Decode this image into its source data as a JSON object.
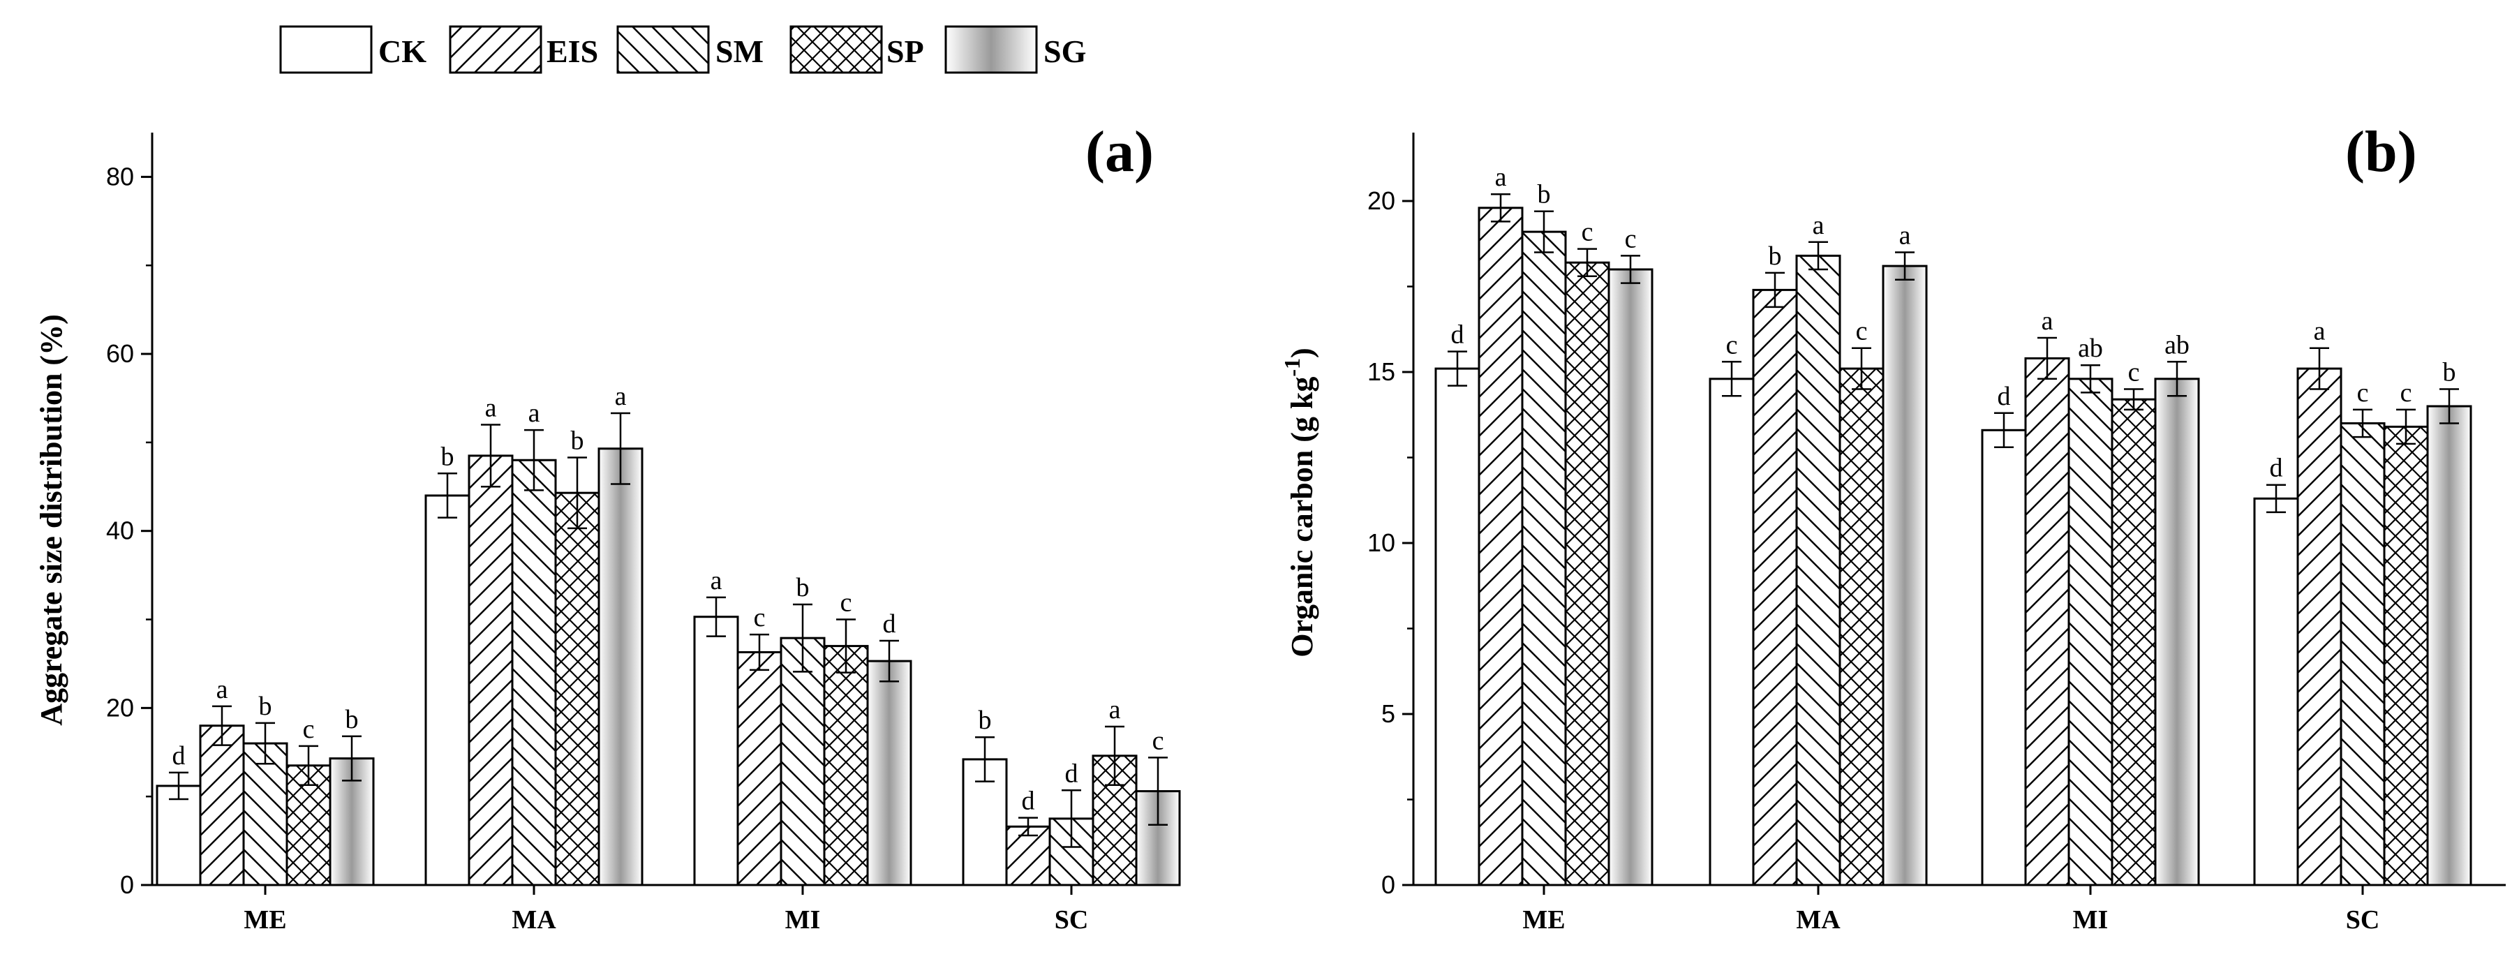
{
  "legend": {
    "items": [
      {
        "key": "CK",
        "pattern": "plain"
      },
      {
        "key": "EIS",
        "pattern": "diag-up"
      },
      {
        "key": "SM",
        "pattern": "diag-down"
      },
      {
        "key": "SP",
        "pattern": "cross"
      },
      {
        "key": "SG",
        "pattern": "gradient"
      }
    ]
  },
  "chart_data": [
    {
      "type": "bar",
      "panel_label": "(a)",
      "title": "",
      "xlabel": "",
      "ylabel": "Aggregate size distribution (%)",
      "ylim": [
        0,
        85
      ],
      "yticks": [
        0,
        20,
        40,
        60,
        80
      ],
      "categories": [
        "ME",
        "MA",
        "MI",
        "SC"
      ],
      "series": [
        {
          "name": "CK",
          "values": [
            11.2,
            44.0,
            30.3,
            14.2
          ],
          "errors": [
            1.5,
            2.5,
            2.2,
            2.5
          ],
          "letters": [
            "d",
            "b",
            "a",
            "b"
          ]
        },
        {
          "name": "EIS",
          "values": [
            18.0,
            48.5,
            26.3,
            6.6
          ],
          "errors": [
            2.2,
            3.5,
            2.0,
            1.0
          ],
          "letters": [
            "a",
            "a",
            "c",
            "d"
          ]
        },
        {
          "name": "SM",
          "values": [
            16.0,
            48.0,
            27.9,
            7.5
          ],
          "errors": [
            2.3,
            3.4,
            3.8,
            3.2
          ],
          "letters": [
            "b",
            "a",
            "b",
            "d"
          ]
        },
        {
          "name": "SP",
          "values": [
            13.5,
            44.3,
            27.0,
            14.6
          ],
          "errors": [
            2.2,
            4.0,
            3.0,
            3.3
          ],
          "letters": [
            "c",
            "b",
            "c",
            "a"
          ]
        },
        {
          "name": "SG",
          "values": [
            14.3,
            49.3,
            25.3,
            10.6
          ],
          "errors": [
            2.5,
            4.0,
            2.3,
            3.8
          ],
          "letters": [
            "b",
            "a",
            "d",
            "c"
          ]
        }
      ]
    },
    {
      "type": "bar",
      "panel_label": "(b)",
      "title": "",
      "xlabel": "",
      "ylabel": "Organic carbon (g kg",
      "ylabel_sup": "-1",
      "ylabel_end": ")",
      "ylim": [
        0,
        22
      ],
      "yticks": [
        0,
        5,
        10,
        15,
        20
      ],
      "categories": [
        "ME",
        "MA",
        "MI",
        "SC"
      ],
      "series": [
        {
          "name": "CK",
          "values": [
            15.1,
            14.8,
            13.3,
            11.3
          ],
          "errors": [
            0.5,
            0.5,
            0.5,
            0.4
          ],
          "letters": [
            "d",
            "c",
            "d",
            "d"
          ]
        },
        {
          "name": "EIS",
          "values": [
            19.8,
            17.4,
            15.4,
            15.1
          ],
          "errors": [
            0.4,
            0.5,
            0.6,
            0.6
          ],
          "letters": [
            "a",
            "b",
            "a",
            "a"
          ]
        },
        {
          "name": "SM",
          "values": [
            19.1,
            18.4,
            14.8,
            13.5
          ],
          "errors": [
            0.6,
            0.4,
            0.4,
            0.4
          ],
          "letters": [
            "b",
            "a",
            "ab",
            "c"
          ]
        },
        {
          "name": "SP",
          "values": [
            18.2,
            15.1,
            14.2,
            13.4
          ],
          "errors": [
            0.4,
            0.6,
            0.3,
            0.5
          ],
          "letters": [
            "c",
            "c",
            "c",
            "c"
          ]
        },
        {
          "name": "SG",
          "values": [
            18.0,
            18.1,
            14.8,
            14.0
          ],
          "errors": [
            0.4,
            0.4,
            0.5,
            0.5
          ],
          "letters": [
            "c",
            "a",
            "ab",
            "b"
          ]
        }
      ]
    }
  ]
}
